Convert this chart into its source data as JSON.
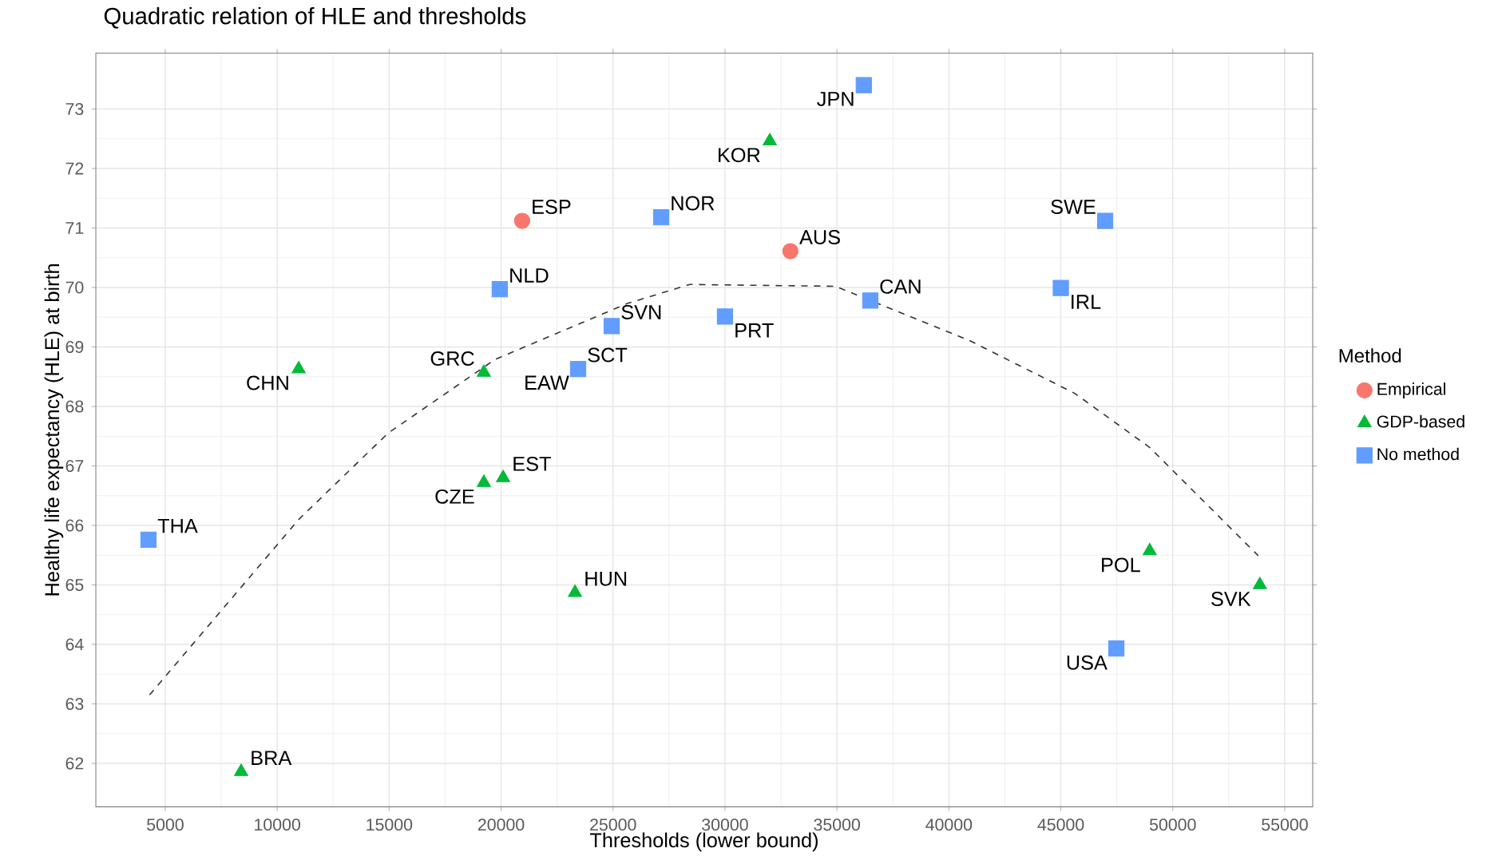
{
  "chart_data": {
    "type": "scatter",
    "title": "Quadratic relation of HLE and thresholds",
    "xlabel": "Thresholds (lower bound)",
    "ylabel": "Healthy life expectancy (HLE) at birth",
    "legend_title": "Method",
    "legend": "right",
    "grid": true,
    "xlim": [
      1900,
      56250
    ],
    "ylim": [
      61.27,
      73.94
    ],
    "xticks": [
      5000,
      10000,
      15000,
      20000,
      25000,
      30000,
      35000,
      40000,
      45000,
      50000,
      55000
    ],
    "yticks": [
      62,
      63,
      64,
      65,
      66,
      67,
      68,
      69,
      70,
      71,
      72,
      73
    ],
    "series": [
      {
        "name": "Empirical",
        "color": "#f8766d",
        "marker": "circle",
        "x": [
          20940,
          32920
        ],
        "values": [
          71.12,
          70.61
        ]
      },
      {
        "name": "GDP-based",
        "color": "#00ba38",
        "marker": "triangle",
        "x": [
          8390,
          10960,
          19230,
          19230,
          20090,
          23300,
          32000,
          48970,
          53890
        ],
        "values": [
          61.86,
          68.63,
          68.57,
          66.72,
          66.8,
          64.87,
          72.46,
          65.57,
          65.0
        ]
      },
      {
        "name": "No method",
        "color": "#619cff",
        "marker": "square",
        "x": [
          4250,
          19940,
          23440,
          24940,
          27150,
          30000,
          36200,
          36490,
          45000,
          46980,
          47480
        ],
        "values": [
          65.76,
          69.97,
          68.63,
          69.35,
          71.18,
          69.51,
          73.4,
          69.78,
          69.99,
          71.12,
          63.93
        ]
      },
      {
        "type": "line",
        "color": "#333333",
        "line_style": "dashed",
        "marker": "none",
        "x": [
          4300,
          10960,
          14950,
          19730,
          25640,
          28420,
          34920,
          40910,
          45620,
          48970,
          53820
        ],
        "values": [
          63.15,
          66.1,
          67.55,
          68.79,
          69.73,
          70.05,
          70.02,
          69.11,
          68.22,
          67.31,
          65.49
        ]
      }
    ],
    "annotations": [
      {
        "text": "THA",
        "x": 4250,
        "y": 65.76
      },
      {
        "text": "BRA",
        "x": 8390,
        "y": 61.86
      },
      {
        "text": "CHN",
        "x": 10960,
        "y": 68.63
      },
      {
        "text": "GRC",
        "x": 19230,
        "y": 68.57
      },
      {
        "text": "NLD",
        "x": 19940,
        "y": 69.97
      },
      {
        "text": "ESP",
        "x": 20940,
        "y": 71.12
      },
      {
        "text": "CZE",
        "x": 19230,
        "y": 66.72
      },
      {
        "text": "EST",
        "x": 20090,
        "y": 66.8
      },
      {
        "text": "EAW",
        "x": 23440,
        "y": 68.63
      },
      {
        "text": "SCT",
        "x": 23440,
        "y": 68.63
      },
      {
        "text": "SVN",
        "x": 24940,
        "y": 69.35
      },
      {
        "text": "NOR",
        "x": 27150,
        "y": 71.18
      },
      {
        "text": "KOR",
        "x": 32000,
        "y": 72.46
      },
      {
        "text": "JPN",
        "x": 36200,
        "y": 73.4
      },
      {
        "text": "AUS",
        "x": 32920,
        "y": 70.61
      },
      {
        "text": "PRT",
        "x": 30000,
        "y": 69.51
      },
      {
        "text": "CAN",
        "x": 36490,
        "y": 69.78
      },
      {
        "text": "SWE",
        "x": 46980,
        "y": 71.12
      },
      {
        "text": "IRL",
        "x": 45000,
        "y": 69.99
      },
      {
        "text": "POL",
        "x": 48970,
        "y": 65.57
      },
      {
        "text": "SVK",
        "x": 53890,
        "y": 65.0
      },
      {
        "text": "USA",
        "x": 47480,
        "y": 63.93
      },
      {
        "text": "HUN",
        "x": 23300,
        "y": 64.87
      }
    ]
  }
}
